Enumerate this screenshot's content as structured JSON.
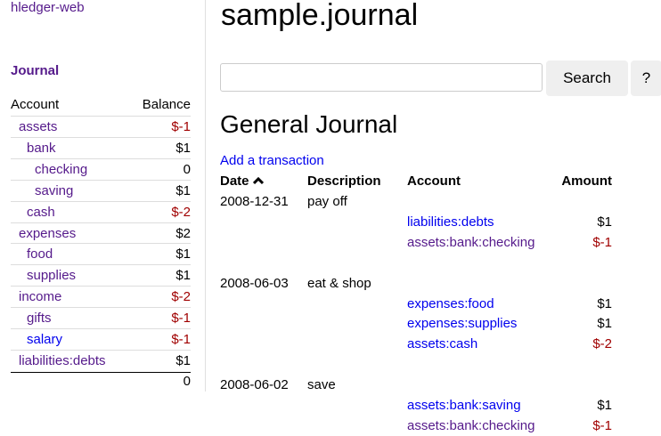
{
  "app_title": "hledger-web",
  "sidebar": {
    "journal_link": "Journal",
    "headers": {
      "account": "Account",
      "balance": "Balance"
    },
    "accounts": [
      {
        "name": "assets",
        "depth": 0,
        "balance": "$-1",
        "negative": true,
        "visited": true
      },
      {
        "name": "bank",
        "depth": 1,
        "balance": "$1",
        "negative": false,
        "visited": true
      },
      {
        "name": "checking",
        "depth": 2,
        "balance": "0",
        "negative": false,
        "visited": true
      },
      {
        "name": "saving",
        "depth": 2,
        "balance": "$1",
        "negative": false,
        "visited": true
      },
      {
        "name": "cash",
        "depth": 1,
        "balance": "$-2",
        "negative": true,
        "visited": true
      },
      {
        "name": "expenses",
        "depth": 0,
        "balance": "$2",
        "negative": false,
        "visited": true
      },
      {
        "name": "food",
        "depth": 1,
        "balance": "$1",
        "negative": false,
        "visited": true
      },
      {
        "name": "supplies",
        "depth": 1,
        "balance": "$1",
        "negative": false,
        "visited": true
      },
      {
        "name": "income",
        "depth": 0,
        "balance": "$-2",
        "negative": true,
        "visited": true
      },
      {
        "name": "gifts",
        "depth": 1,
        "balance": "$-1",
        "negative": true,
        "visited": true
      },
      {
        "name": "salary",
        "depth": 1,
        "balance": "$-1",
        "negative": true,
        "visited": false
      },
      {
        "name": "liabilities:debts",
        "depth": 0,
        "balance": "$1",
        "negative": false,
        "visited": true
      }
    ],
    "total": "0"
  },
  "main": {
    "title": "sample.journal",
    "search": {
      "value": "",
      "placeholder": "",
      "button": "Search",
      "help_button": "?"
    },
    "heading": "General Journal",
    "add_transaction": "Add a transaction",
    "columns": {
      "date": "Date",
      "sort_icon": "chevron-up-icon",
      "description": "Description",
      "account": "Account",
      "amount": "Amount"
    },
    "transactions": [
      {
        "date": "2008-12-31",
        "description": "pay off",
        "postings": [
          {
            "account": "liabilities:debts",
            "amount": "$1",
            "negative": false,
            "visited": false
          },
          {
            "account": "assets:bank:checking",
            "amount": "$-1",
            "negative": true,
            "visited": true
          }
        ]
      },
      {
        "date": "2008-06-03",
        "description": "eat & shop",
        "postings": [
          {
            "account": "expenses:food",
            "amount": "$1",
            "negative": false,
            "visited": false
          },
          {
            "account": "expenses:supplies",
            "amount": "$1",
            "negative": false,
            "visited": false
          },
          {
            "account": "assets:cash",
            "amount": "$-2",
            "negative": true,
            "visited": false
          }
        ]
      },
      {
        "date": "2008-06-02",
        "description": "save",
        "postings": [
          {
            "account": "assets:bank:saving",
            "amount": "$1",
            "negative": false,
            "visited": false
          },
          {
            "account": "assets:bank:checking",
            "amount": "$-1",
            "negative": true,
            "visited": true
          }
        ]
      }
    ]
  },
  "colors": {
    "visited_link": "#551a8b",
    "link": "#0000ee",
    "negative": "#a00000"
  }
}
